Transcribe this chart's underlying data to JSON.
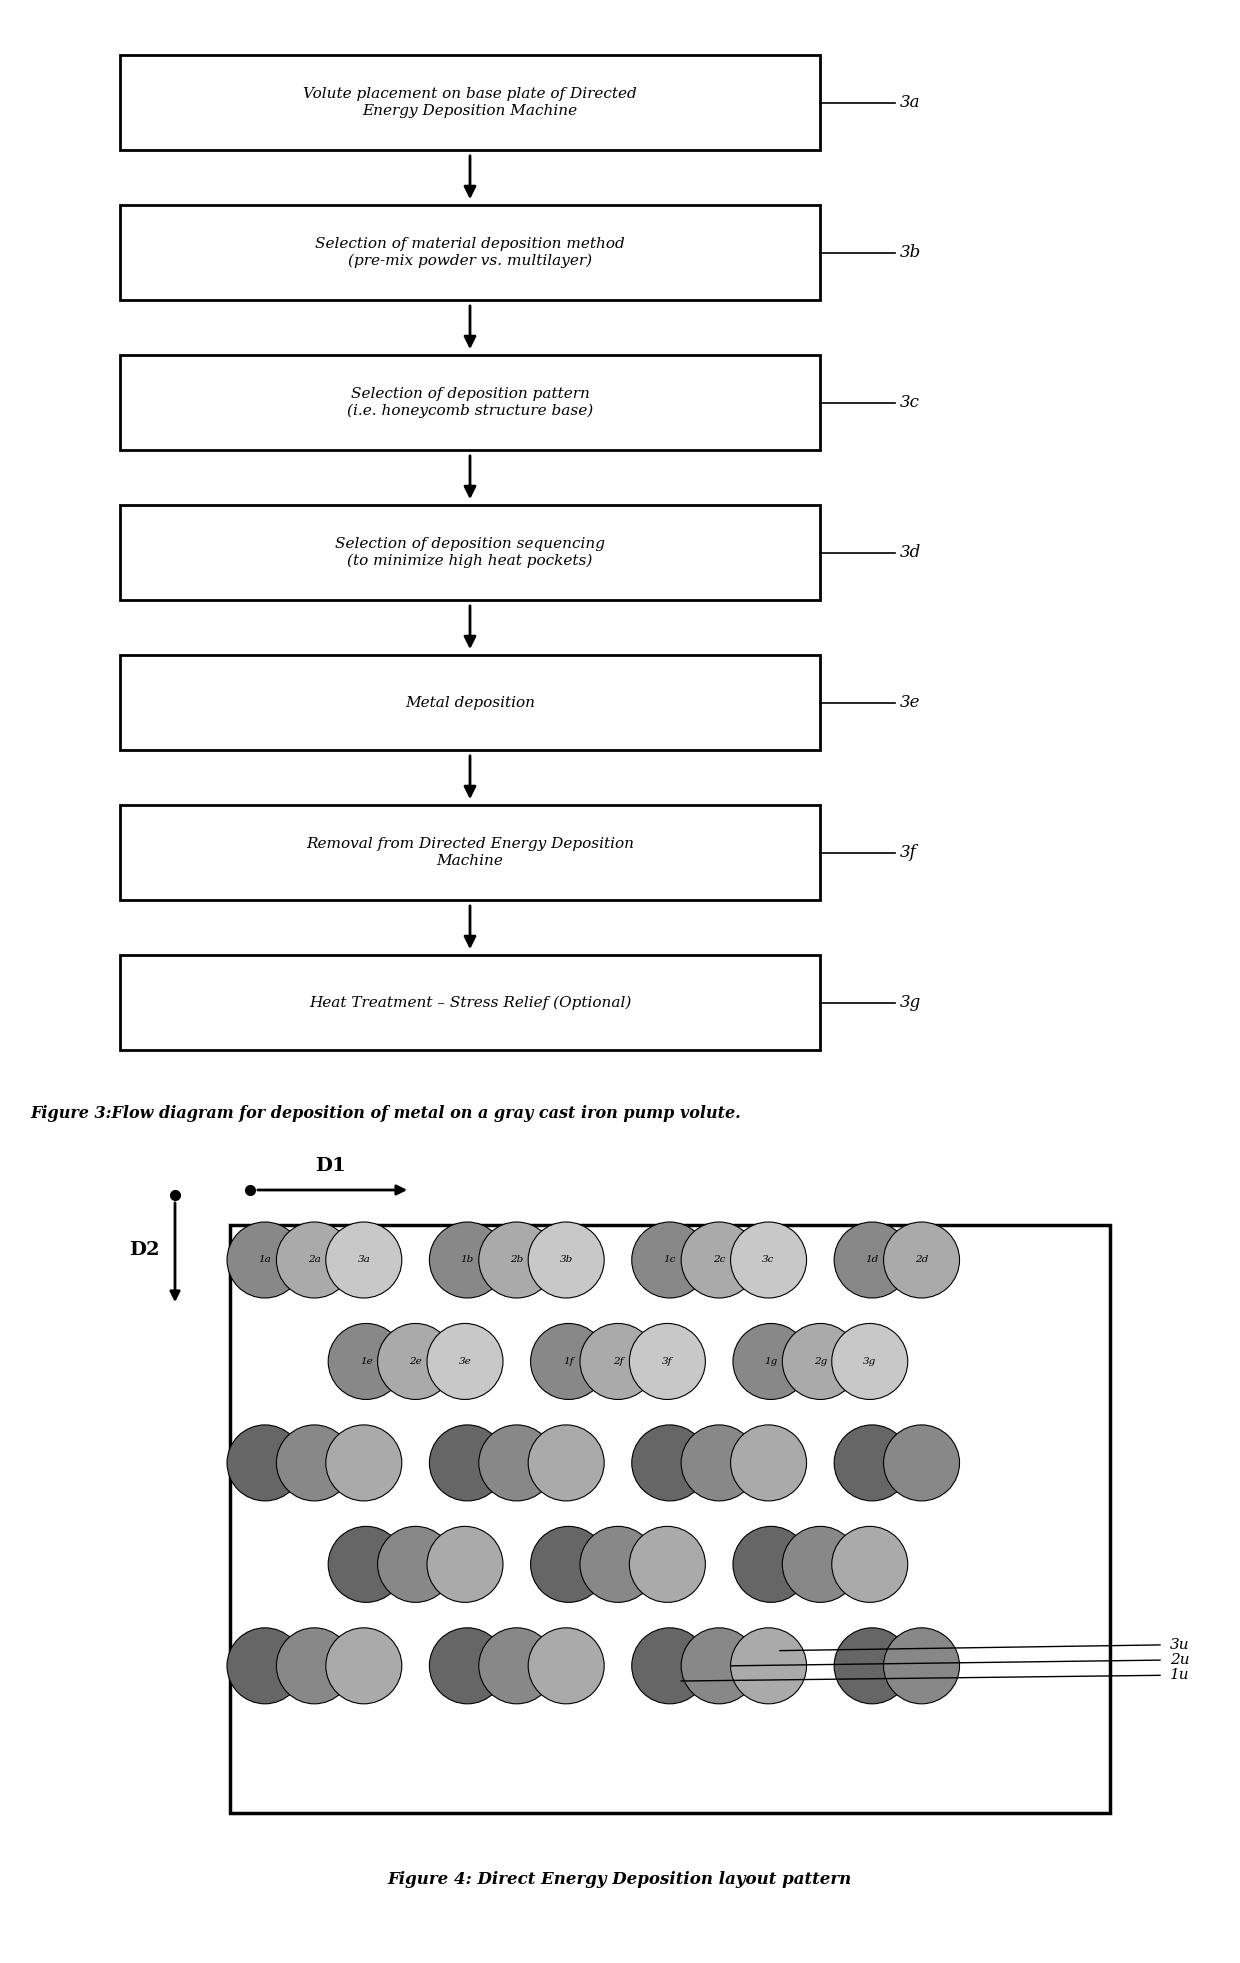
{
  "fig_width": 12.4,
  "fig_height": 19.63,
  "dpi": 100,
  "bg_color": "#ffffff",
  "flowchart": {
    "boxes": [
      {
        "label": "Volute placement on base plate of Directed\nEnergy Deposition Machine",
        "tag": "3a"
      },
      {
        "label": "Selection of material deposition method\n(pre-mix powder vs. multilayer)",
        "tag": "3b"
      },
      {
        "label": "Selection of deposition pattern\n(i.e. honeycomb structure base)",
        "tag": "3c"
      },
      {
        "label": "Selection of deposition sequencing\n(to minimize high heat pockets)",
        "tag": "3d"
      },
      {
        "label": "Metal deposition",
        "tag": "3e"
      },
      {
        "label": "Removal from Directed Energy Deposition\nMachine",
        "tag": "3f"
      },
      {
        "label": "Heat Treatment – Stress Relief (Optional)",
        "tag": "3g"
      }
    ],
    "fig3_caption": "Figure 3:Flow diagram for deposition of metal on a gray cast iron pump volute."
  },
  "fig4_caption": "Figure 4: Direct Energy Deposition layout pattern",
  "circle_colors": {
    "row1_dark": "#888888",
    "row1_mid": "#aaaaaa",
    "row1_light": "#c8c8c8",
    "row2_dark": "#888888",
    "row2_mid": "#aaaaaa",
    "row2_light": "#c8c8c8",
    "plain_dark": "#666666",
    "plain_mid": "#888888",
    "plain_light": "#aaaaaa"
  }
}
